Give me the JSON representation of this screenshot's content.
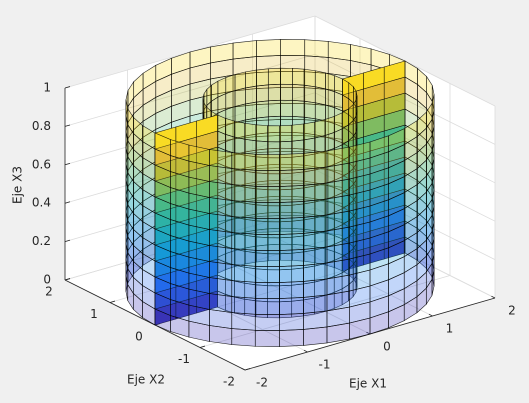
{
  "chart_data": {
    "type": "surface",
    "xlabel": "Eje X1",
    "ylabel": "Eje X2",
    "zlabel": "Eje X3",
    "xlim": [
      -2,
      2
    ],
    "ylim": [
      -2,
      2
    ],
    "zlim": [
      0,
      1
    ],
    "xticks": [
      -2,
      -1,
      0,
      1,
      2
    ],
    "yticks": [
      -2,
      -1,
      0,
      1,
      2
    ],
    "zticks": [
      0,
      0.2,
      0.4,
      0.6,
      0.8,
      1
    ],
    "grid": true
  }
}
